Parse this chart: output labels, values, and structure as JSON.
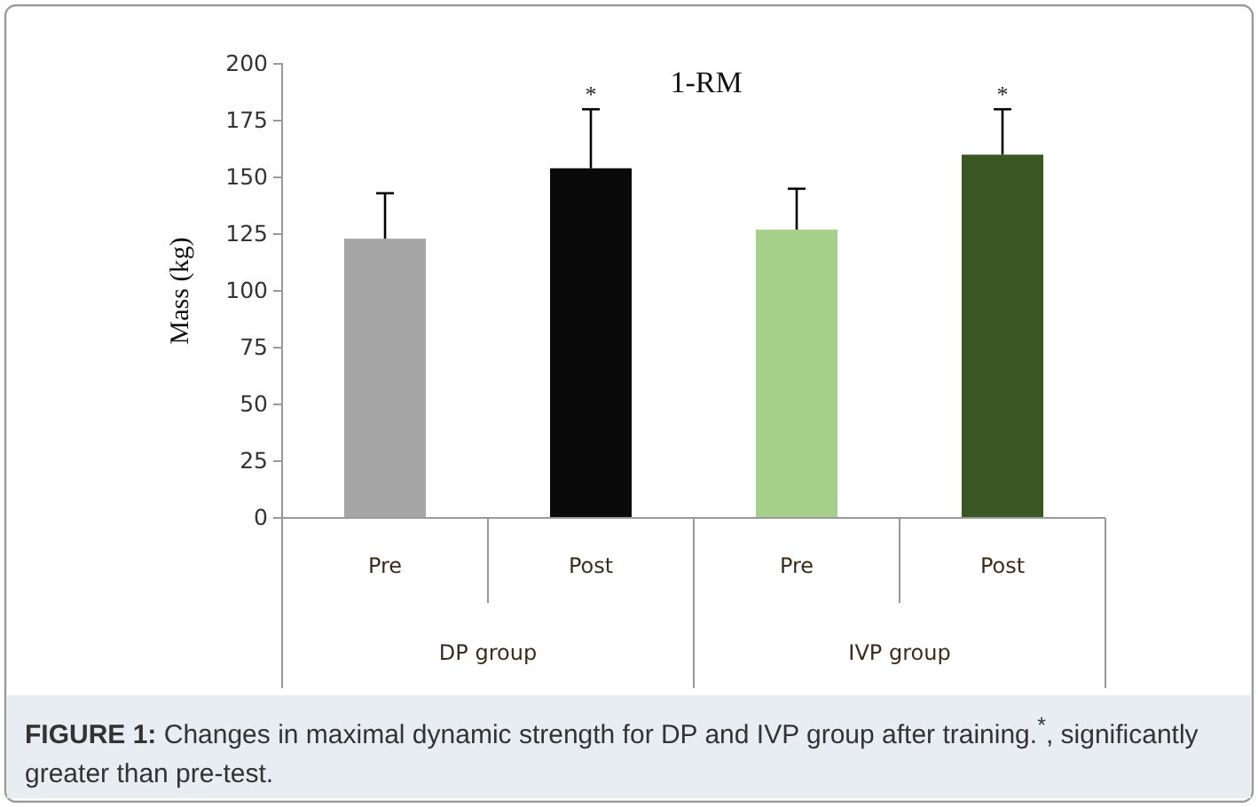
{
  "chart_data": {
    "type": "bar",
    "title": "1-RM",
    "ylabel": "Mass (kg)",
    "categories": [
      "Pre",
      "Post",
      "Pre",
      "Post"
    ],
    "values": [
      123,
      154,
      127,
      160
    ],
    "colors": [
      "#a6a6a6",
      "#0a0a0a",
      "#a6d08a",
      "#385723"
    ],
    "errors": [
      [
        123,
        143
      ],
      [
        154,
        180
      ],
      [
        127,
        145
      ],
      [
        160,
        180
      ]
    ],
    "value_labels": [
      null,
      "*",
      null,
      "*"
    ],
    "ylim": [
      0,
      200
    ],
    "yticks": [
      0,
      25,
      50,
      75,
      100,
      125,
      150,
      175,
      200
    ],
    "annotations": [
      "DP group",
      "IVP group",
      "FIGURE 1: Changes in maximal dynamic strength for DP and IVP group after training.$^{*}$, significantly greater than pre-test."
    ]
  }
}
